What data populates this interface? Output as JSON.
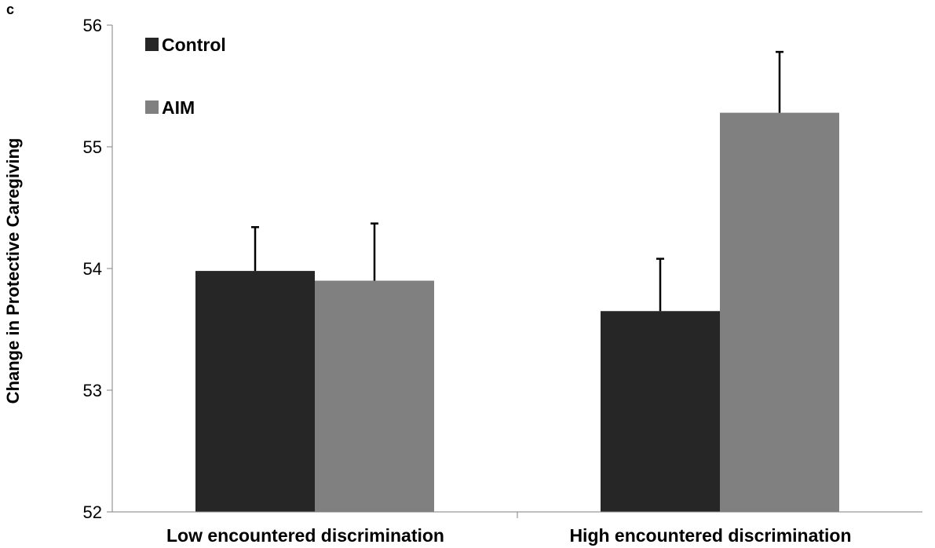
{
  "panel_label": "c",
  "chart_data": {
    "type": "bar",
    "categories": [
      "Low encountered discrimination",
      "High encountered discrimination"
    ],
    "series": [
      {
        "name": "Control",
        "values": [
          53.98,
          53.65
        ],
        "errors": [
          0.36,
          0.43
        ],
        "color": "#262626"
      },
      {
        "name": "AIM",
        "values": [
          53.9,
          55.28
        ],
        "errors": [
          0.47,
          0.5
        ],
        "color": "#808080"
      }
    ],
    "ylabel": "Change in Protective Caregiving",
    "xlabel": "",
    "ylim": [
      52,
      56
    ],
    "yticks": [
      52,
      53,
      54,
      55,
      56
    ],
    "grid": false,
    "legend_position": "top-left"
  }
}
